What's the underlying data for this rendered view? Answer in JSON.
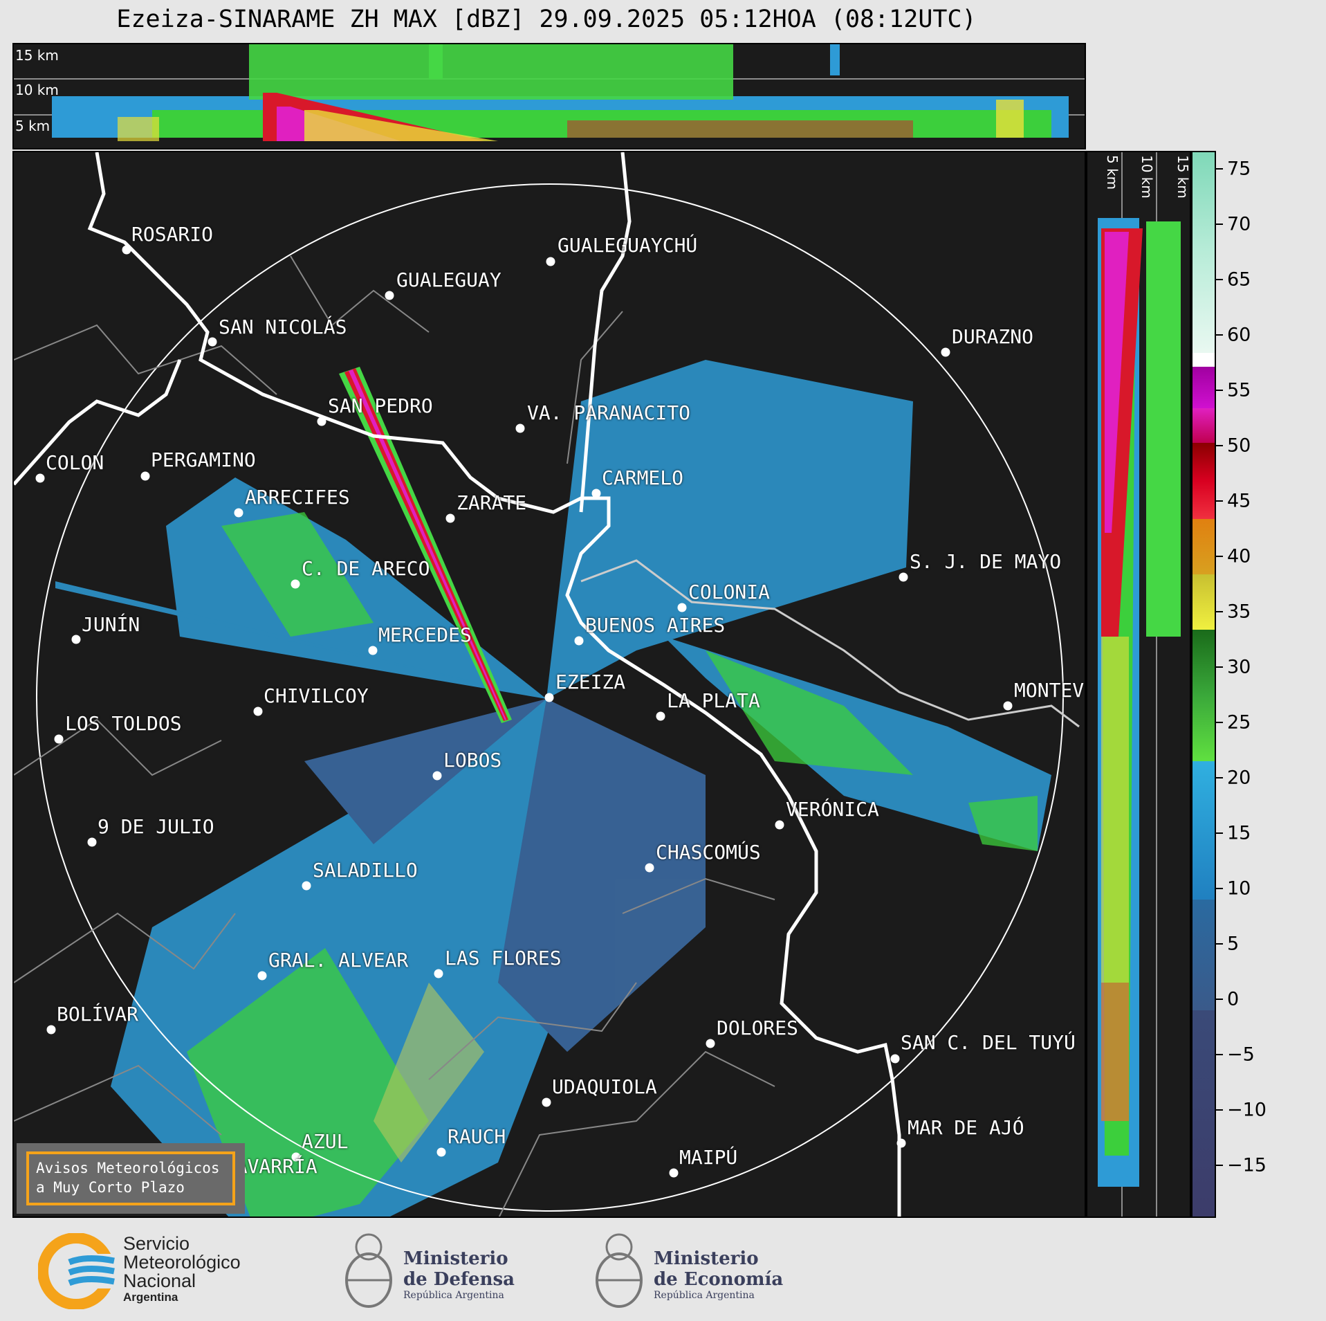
{
  "title": "Ezeiza-SINARAME ZH MAX [dBZ] 29.09.2025 05:12HOA (08:12UTC)",
  "top_panel": {
    "labels": [
      "15 km",
      "10 km",
      "5 km"
    ]
  },
  "side_panel": {
    "labels": [
      "5 km",
      "10 km",
      "15 km"
    ]
  },
  "colorbar": {
    "unit": "dBZ",
    "ticks": [
      "75",
      "70",
      "65",
      "60",
      "55",
      "50",
      "45",
      "40",
      "35",
      "30",
      "25",
      "20",
      "15",
      "10",
      "5",
      "0",
      "−5",
      "−10",
      "−15"
    ]
  },
  "cities": [
    {
      "name": "ROSARIO"
    },
    {
      "name": "GUALEGUAYCHÚ"
    },
    {
      "name": "GUALEGUAY"
    },
    {
      "name": "SAN NICOLÁS"
    },
    {
      "name": "DURAZNO"
    },
    {
      "name": "SAN PEDRO"
    },
    {
      "name": "VA. PARANACITO"
    },
    {
      "name": "COLON"
    },
    {
      "name": "PERGAMINO"
    },
    {
      "name": "CARMELO"
    },
    {
      "name": "ARRECIFES"
    },
    {
      "name": "ZARATE"
    },
    {
      "name": "C. DE ARECO"
    },
    {
      "name": "S. J. DE MAYO"
    },
    {
      "name": "COLONIA"
    },
    {
      "name": "JUNÍN"
    },
    {
      "name": "BUENOS AIRES"
    },
    {
      "name": "MERCEDES"
    },
    {
      "name": "EZEIZA"
    },
    {
      "name": "MONTEV"
    },
    {
      "name": "CHIVILCOY"
    },
    {
      "name": "LA PLATA"
    },
    {
      "name": "LOS TOLDOS"
    },
    {
      "name": "LOBOS"
    },
    {
      "name": "VERÓNICA"
    },
    {
      "name": "9 DE JULIO"
    },
    {
      "name": "CHASCOMÚS"
    },
    {
      "name": "SALADILLO"
    },
    {
      "name": "GRAL. ALVEAR"
    },
    {
      "name": "LAS FLORES"
    },
    {
      "name": "BOLÍVAR"
    },
    {
      "name": "DOLORES"
    },
    {
      "name": "SAN C. DEL TUYÚ"
    },
    {
      "name": "UDAQUIOLA"
    },
    {
      "name": "MAR DE AJÓ"
    },
    {
      "name": "AZUL"
    },
    {
      "name": "RAUCH"
    },
    {
      "name": "OLAVARRÍA"
    },
    {
      "name": "MAIPÚ"
    }
  ],
  "alert_box": {
    "line1": "Avisos Meteorológicos",
    "line2": "a Muy Corto Plazo"
  },
  "footer": {
    "smn": {
      "line1": "Servicio",
      "line2": "Meteorológico",
      "line3": "Nacional",
      "line4": "Argentina"
    },
    "defensa": {
      "line1": "Ministerio",
      "line2": "de Defensa",
      "line3": "República Argentina"
    },
    "economia": {
      "line1": "Ministerio",
      "line2": "de Economía",
      "line3": "República Argentina"
    }
  }
}
